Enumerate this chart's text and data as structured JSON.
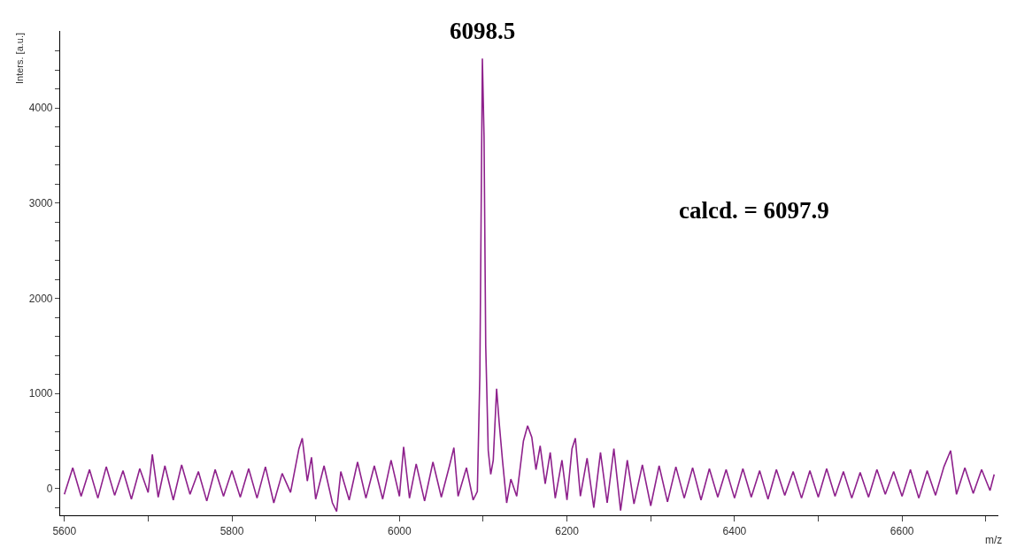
{
  "chart_data": {
    "type": "line",
    "xlabel": "m/z",
    "ylabel": "Inters. [a.u.]",
    "annotations": [
      {
        "text": "6098.5",
        "x": 6098.5,
        "y": 4520
      },
      "calcd. = 6097.9"
    ],
    "xlim": [
      5595,
      6715
    ],
    "ylim": [
      -280,
      4810
    ],
    "xticks": [
      5600,
      {
        "value": 5700,
        "label": null
      },
      5800,
      {
        "value": 5900,
        "label": null
      },
      6000,
      {
        "value": 6100,
        "label": null
      },
      6200,
      {
        "value": 6300,
        "label": null
      },
      6400,
      {
        "value": 6500,
        "label": null
      },
      6600,
      {
        "value": 6700,
        "label": null
      }
    ],
    "yticks": [
      {
        "value": -200,
        "label": null
      },
      0,
      {
        "value": 200,
        "label": null
      },
      {
        "value": 400,
        "label": null
      },
      {
        "value": 600,
        "label": null
      },
      {
        "value": 800,
        "label": null
      },
      1000,
      {
        "value": 1200,
        "label": null
      },
      {
        "value": 1400,
        "label": null
      },
      {
        "value": 1600,
        "label": null
      },
      {
        "value": 1800,
        "label": null
      },
      2000,
      {
        "value": 2200,
        "label": null
      },
      {
        "value": 2400,
        "label": null
      },
      {
        "value": 2600,
        "label": null
      },
      {
        "value": 2800,
        "label": null
      },
      3000,
      {
        "value": 3200,
        "label": null
      },
      {
        "value": 3400,
        "label": null
      },
      {
        "value": 3600,
        "label": null
      },
      {
        "value": 3800,
        "label": null
      },
      4000,
      {
        "value": 4200,
        "label": null
      },
      {
        "value": 4400,
        "label": null
      },
      {
        "value": 4600,
        "label": null
      }
    ],
    "marker": "none",
    "line_style": "solid",
    "series": [
      {
        "color": "#8e218c",
        "x": [
          5600,
          5610,
          5620,
          5630,
          5640,
          5650,
          5660,
          5670,
          5680,
          5690,
          5700,
          5705,
          5712,
          5720,
          5730,
          5740,
          5750,
          5760,
          5770,
          5780,
          5790,
          5800,
          5810,
          5820,
          5830,
          5840,
          5850,
          5860,
          5870,
          5880,
          5884,
          5890,
          5895,
          5900,
          5910,
          5920,
          5925,
          5930,
          5940,
          5950,
          5960,
          5970,
          5980,
          5990,
          6000,
          6005,
          6012,
          6020,
          6030,
          6040,
          6050,
          6060,
          6065,
          6070,
          6080,
          6088,
          6093,
          6096,
          6099,
          6101,
          6103,
          6106,
          6109,
          6112,
          6116,
          6119,
          6123,
          6128,
          6133,
          6140,
          6148,
          6153,
          6158,
          6163,
          6168,
          6174,
          6180,
          6186,
          6194,
          6200,
          6206,
          6210,
          6216,
          6224,
          6232,
          6240,
          6248,
          6256,
          6264,
          6272,
          6280,
          6290,
          6300,
          6310,
          6320,
          6330,
          6340,
          6350,
          6360,
          6370,
          6380,
          6390,
          6400,
          6410,
          6420,
          6430,
          6440,
          6450,
          6460,
          6470,
          6480,
          6490,
          6500,
          6510,
          6520,
          6530,
          6540,
          6550,
          6560,
          6570,
          6580,
          6590,
          6600,
          6610,
          6620,
          6630,
          6640,
          6650,
          6658,
          6665,
          6675,
          6685,
          6695,
          6705,
          6710
        ],
        "values": [
          -60,
          220,
          -80,
          200,
          -100,
          230,
          -70,
          190,
          -110,
          210,
          -40,
          360,
          -90,
          240,
          -120,
          250,
          -60,
          180,
          -130,
          200,
          -80,
          190,
          -90,
          210,
          -100,
          230,
          -150,
          160,
          -40,
          420,
          530,
          80,
          330,
          -110,
          240,
          -150,
          -240,
          180,
          -120,
          280,
          -100,
          240,
          -110,
          300,
          -80,
          440,
          -100,
          260,
          -130,
          280,
          -90,
          250,
          430,
          -80,
          220,
          -120,
          -30,
          1200,
          4520,
          3700,
          1500,
          400,
          150,
          300,
          1050,
          700,
          300,
          -150,
          100,
          -80,
          500,
          660,
          540,
          200,
          450,
          50,
          380,
          -100,
          300,
          -120,
          420,
          530,
          -80,
          320,
          -200,
          380,
          -150,
          420,
          -230,
          300,
          -160,
          250,
          -180,
          240,
          -140,
          230,
          -100,
          220,
          -120,
          210,
          -90,
          200,
          -100,
          210,
          -90,
          190,
          -110,
          200,
          -70,
          180,
          -100,
          190,
          -90,
          210,
          -80,
          180,
          -100,
          170,
          -90,
          200,
          -60,
          180,
          -80,
          200,
          -100,
          190,
          -70,
          230,
          400,
          -60,
          220,
          -50,
          200,
          -20,
          150
        ]
      }
    ]
  }
}
